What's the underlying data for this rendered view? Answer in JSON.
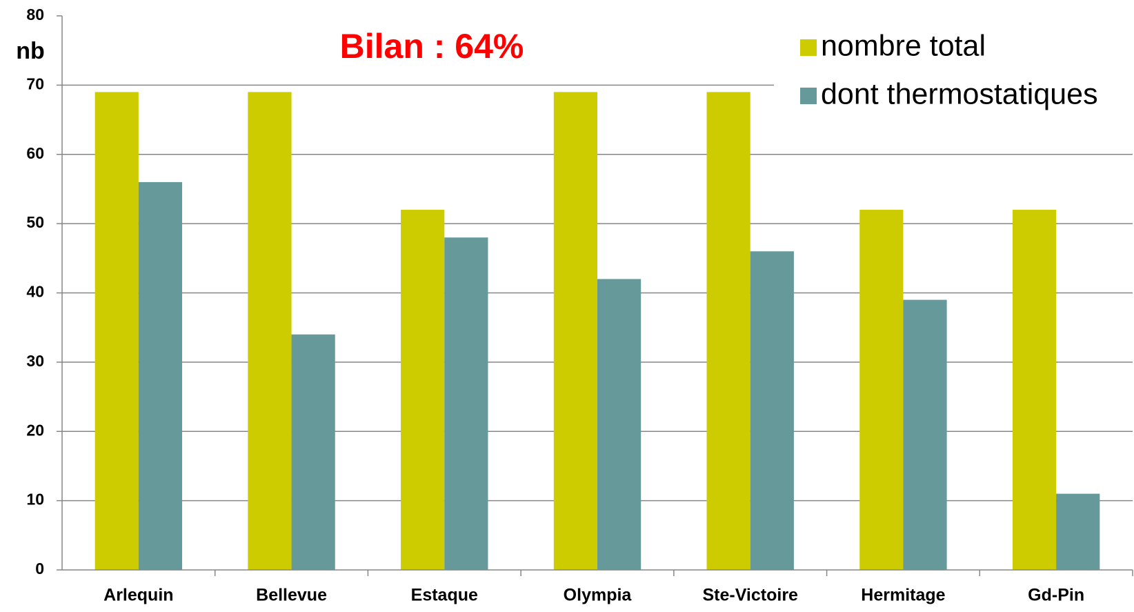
{
  "chart_data": {
    "type": "bar",
    "title": "Bilan : 64%",
    "y_label": "nb",
    "categories": [
      "Arlequin",
      "Bellevue",
      "Estaque",
      "Olympia",
      "Ste-Victoire",
      "Hermitage",
      "Gd-Pin"
    ],
    "series": [
      {
        "name": "nombre total",
        "color": "#cccc00",
        "values": [
          69,
          69,
          52,
          69,
          69,
          52,
          52
        ]
      },
      {
        "name": "dont thermostatiques",
        "color": "#669999",
        "values": [
          56,
          34,
          48,
          42,
          46,
          39,
          11
        ]
      }
    ],
    "ylim": [
      0,
      80
    ],
    "yticks": [
      0,
      10,
      20,
      30,
      40,
      50,
      60,
      70,
      80
    ],
    "grid": true,
    "legend": "upper right"
  }
}
